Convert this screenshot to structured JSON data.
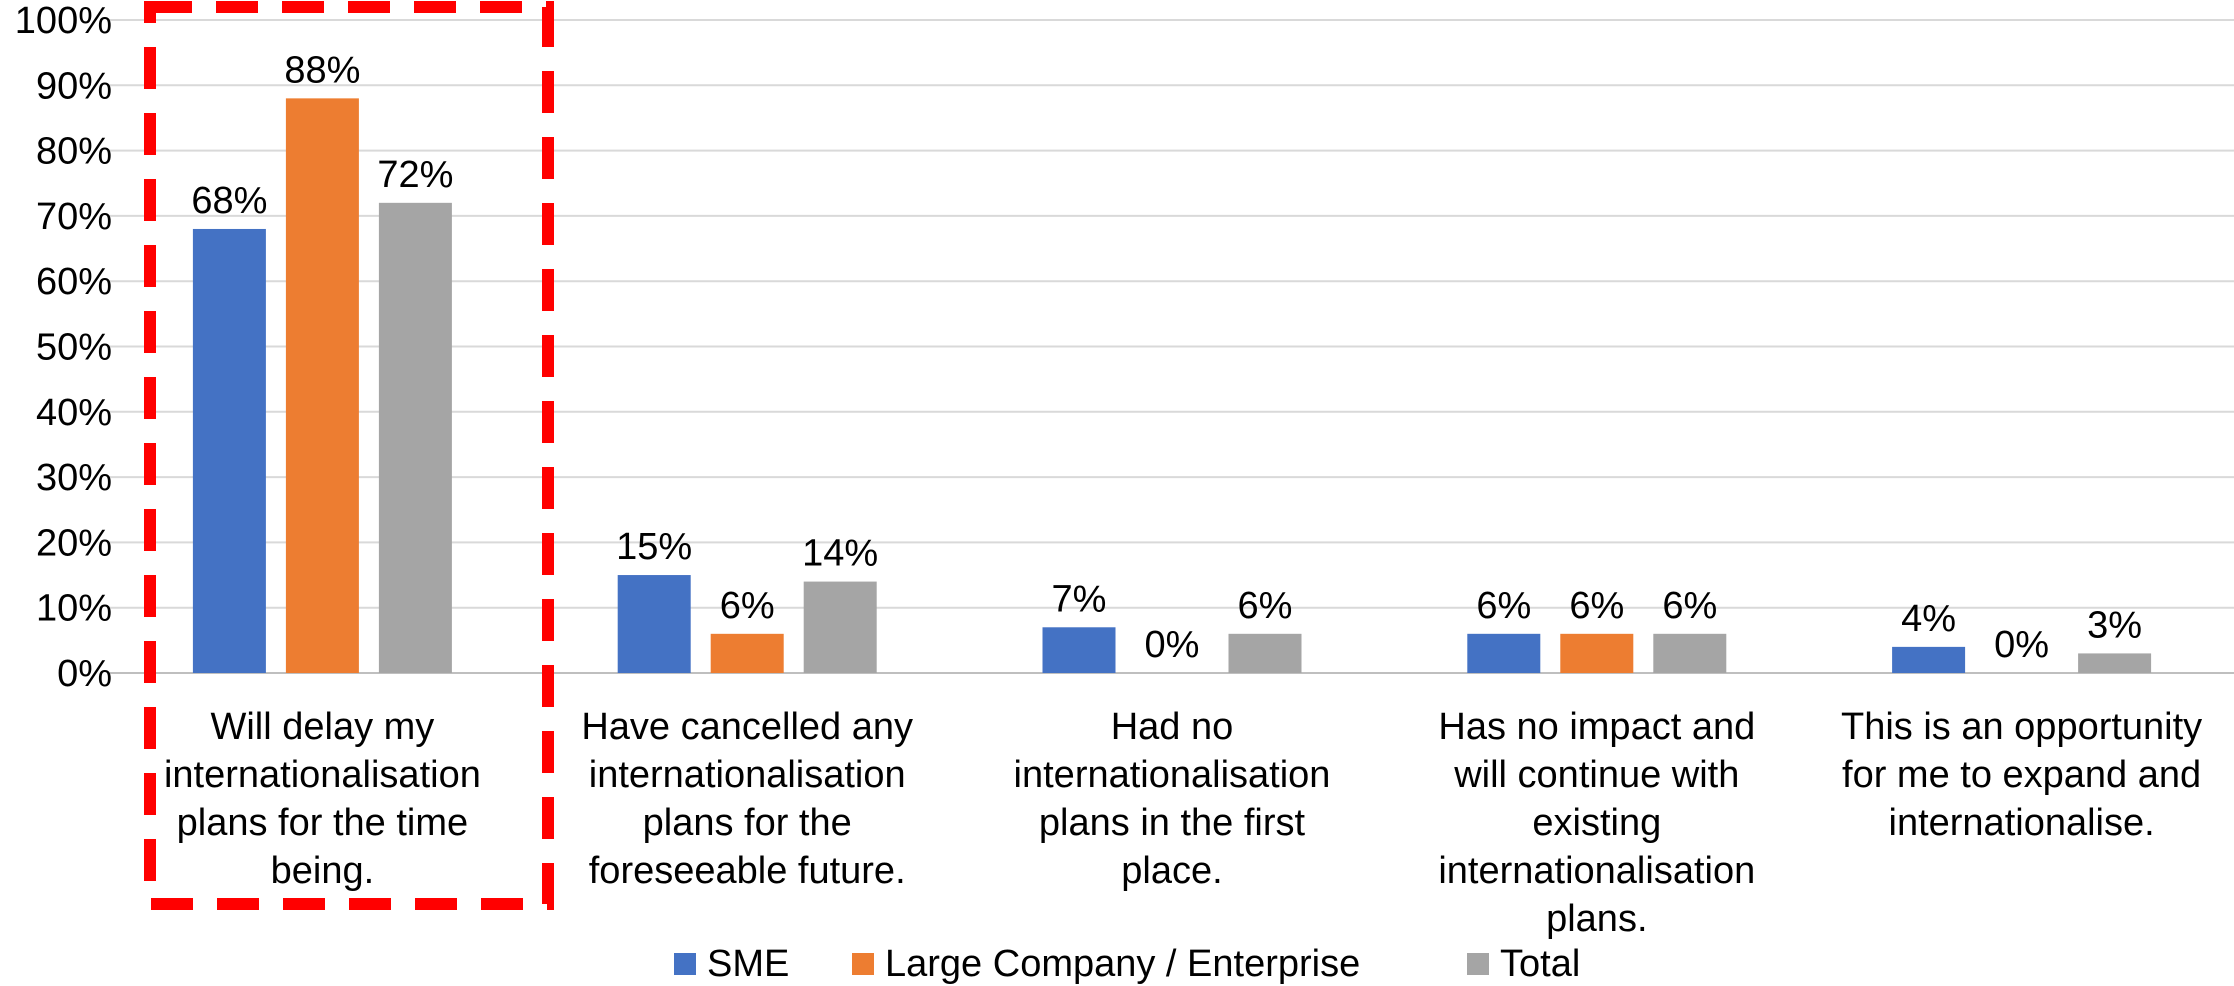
{
  "chart_data": {
    "type": "bar",
    "categories": [
      "Will delay my internationalisation plans for the time being.",
      "Have cancelled any internationalisation plans for the foreseeable future.",
      "Had no internationalisation plans in the first place.",
      "Has no impact and will continue with existing internationalisation plans.",
      "This is an opportunity for me to expand and internationalise."
    ],
    "category_lines": [
      [
        "Will delay my",
        "internationalisation",
        "plans for the time",
        "being."
      ],
      [
        "Have cancelled any",
        "internationalisation",
        "plans for the",
        "foreseeable future."
      ],
      [
        "Had no",
        "internationalisation",
        "plans in the first",
        "place."
      ],
      [
        "Has no impact and",
        "will continue with",
        "existing",
        "internationalisation",
        "plans."
      ],
      [
        "This is an opportunity",
        "for me to expand and",
        "internationalise."
      ]
    ],
    "series": [
      {
        "name": "SME",
        "color": "#4472C4",
        "values": [
          68,
          15,
          7,
          6,
          4
        ],
        "labels": [
          "68%",
          "15%",
          "7%",
          "6%",
          "4%"
        ]
      },
      {
        "name": "Large Company / Enterprise",
        "color": "#ED7D31",
        "values": [
          88,
          6,
          0,
          6,
          0
        ],
        "labels": [
          "88%",
          "6%",
          "0%",
          "6%",
          "0%"
        ]
      },
      {
        "name": "Total",
        "color": "#A5A5A5",
        "values": [
          72,
          14,
          6,
          6,
          3
        ],
        "labels": [
          "72%",
          "14%",
          "6%",
          "6%",
          "3%"
        ]
      }
    ],
    "y_ticks": [
      "0%",
      "10%",
      "20%",
      "30%",
      "40%",
      "50%",
      "60%",
      "70%",
      "80%",
      "90%",
      "100%"
    ],
    "ylim": [
      0,
      100
    ],
    "grid": true,
    "gridline_color": "#D9D9D9",
    "legend_position": "bottom",
    "highlight": {
      "category_index": 0,
      "style": "dashed",
      "color": "#FF0000"
    }
  }
}
